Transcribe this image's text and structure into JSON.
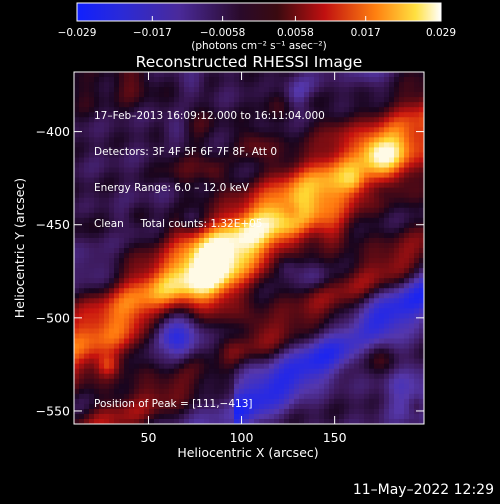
{
  "chart_data": {
    "type": "heatmap",
    "title": "Reconstructed RHESSI Image",
    "xlabel": "Heliocentric X (arcsec)",
    "ylabel": "Heliocentric Y (arcsec)",
    "xlim": [
      10,
      198
    ],
    "ylim": [
      -557,
      -368
    ],
    "xticks": [
      50,
      100,
      150
    ],
    "yticks": [
      -400,
      -450,
      -500,
      -550
    ],
    "colorbar": {
      "min": -0.029,
      "max": 0.029,
      "tick_values": [
        -0.029,
        -0.017,
        -0.0058,
        0.0058,
        0.017,
        0.029
      ],
      "tick_labels": [
        "−0.029",
        "−0.017",
        "−0.0058",
        "0.0058",
        "0.017",
        "0.029"
      ],
      "units_label": "(photons cm⁻² s⁻¹ asec⁻²)"
    },
    "info_lines": [
      "17–Feb–2013 16:09:12.000 to 16:11:04.000",
      "Detectors: 3F 4F 5F 6F 7F 8F, Att 0",
      "Energy Range: 6.0 – 12.0 keV",
      "Clean     Total counts: 1.32E+05"
    ],
    "peak_text": "Position of Peak = [111,−413]",
    "peak_position": [
      111,
      -413
    ],
    "timestamp": "11–May–2022 12:29"
  }
}
